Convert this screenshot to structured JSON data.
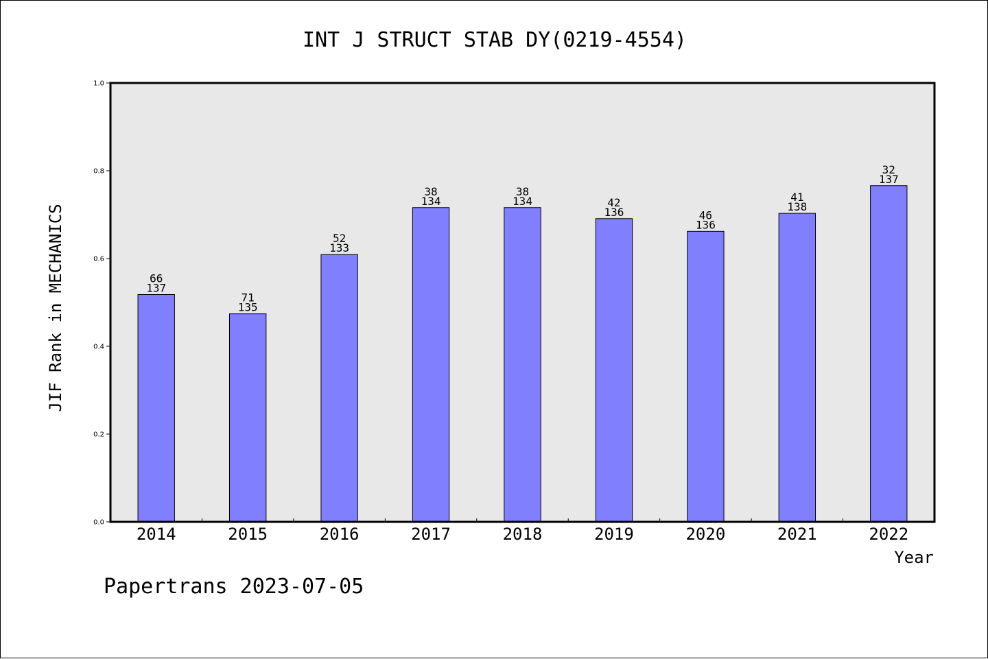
{
  "chart_data": {
    "type": "bar",
    "title": "INT J STRUCT STAB DY(0219-4554)",
    "xlabel": "Year",
    "ylabel": "JIF Rank in MECHANICS",
    "categories": [
      "2014",
      "2015",
      "2016",
      "2017",
      "2018",
      "2019",
      "2020",
      "2021",
      "2022"
    ],
    "values": [
      0.518,
      0.474,
      0.609,
      0.716,
      0.716,
      0.691,
      0.662,
      0.703,
      0.766
    ],
    "ranks": [
      "66",
      "71",
      "52",
      "38",
      "38",
      "42",
      "46",
      "41",
      "32"
    ],
    "totals": [
      "137",
      "135",
      "133",
      "134",
      "134",
      "136",
      "136",
      "138",
      "137"
    ],
    "ylim": [
      0,
      1.0
    ],
    "yticks": [
      "0.0",
      "0.2",
      "0.4",
      "0.6",
      "0.8",
      "1.0"
    ],
    "grid": false,
    "bar_color": "#8080ff",
    "plot_background": "#e8e8e8"
  },
  "footer": "Papertrans 2023-07-05"
}
